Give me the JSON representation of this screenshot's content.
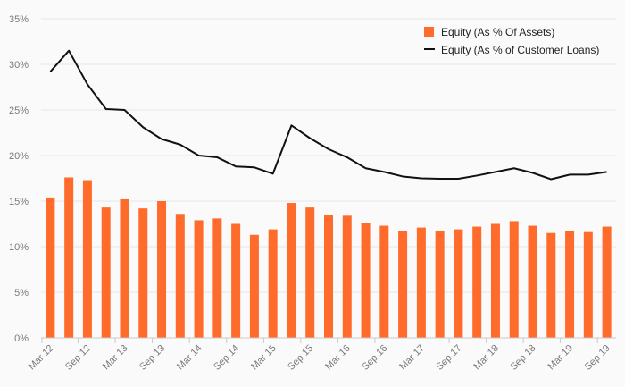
{
  "chart_data": {
    "type": "bar",
    "title": "",
    "xlabel": "",
    "ylabel": "",
    "ylim": [
      0,
      35
    ],
    "yticks": [
      0,
      5,
      10,
      15,
      20,
      25,
      30,
      35
    ],
    "ytick_labels": [
      "0%",
      "5%",
      "10%",
      "15%",
      "20%",
      "25%",
      "30%",
      "35%"
    ],
    "categories": [
      "Mar 12",
      "Jun 12",
      "Sep 12",
      "Dec 12",
      "Mar 13",
      "Jun 13",
      "Sep 13",
      "Dec 13",
      "Mar 14",
      "Jun 14",
      "Sep 14",
      "Dec 14",
      "Mar 15",
      "Jun 15",
      "Sep 15",
      "Dec 15",
      "Mar 16",
      "Jun 16",
      "Sep 16",
      "Dec 16",
      "Mar 17",
      "Jun 17",
      "Sep 17",
      "Dec 17",
      "Mar 18",
      "Jun 18",
      "Sep 18",
      "Dec 18",
      "Mar 19",
      "Jun 19",
      "Sep 19"
    ],
    "xtick_labels": [
      "Mar 12",
      "Sep 12",
      "Mar 13",
      "Sep 13",
      "Mar 14",
      "Sep 14",
      "Mar 15",
      "Sep 15",
      "Mar 16",
      "Sep 16",
      "Mar 17",
      "Sep 17",
      "Mar 18",
      "Sep 18",
      "Mar 19",
      "Sep 19"
    ],
    "grid": true,
    "legend_position": "top-right",
    "series": [
      {
        "name": "Equity (As % Of Assets)",
        "type": "bar",
        "color": "#ff6b2b",
        "values": [
          15.4,
          17.6,
          17.3,
          14.3,
          15.2,
          14.2,
          15.0,
          13.6,
          12.9,
          13.1,
          12.5,
          11.3,
          11.9,
          14.8,
          14.3,
          13.5,
          13.4,
          12.6,
          12.3,
          11.7,
          12.1,
          11.7,
          11.9,
          12.2,
          12.5,
          12.8,
          12.3,
          11.5,
          11.7,
          11.6,
          12.2
        ]
      },
      {
        "name": "Equity (As % of Customer Loans)",
        "type": "line",
        "color": "#111111",
        "values": [
          29.2,
          31.5,
          27.8,
          25.1,
          25.0,
          23.1,
          21.8,
          21.2,
          20.0,
          19.8,
          18.8,
          18.7,
          18.0,
          23.3,
          21.9,
          20.7,
          19.8,
          18.6,
          18.2,
          17.7,
          17.5,
          17.45,
          17.45,
          17.8,
          18.2,
          18.6,
          18.1,
          17.4,
          17.9,
          17.9,
          18.2
        ]
      }
    ]
  }
}
